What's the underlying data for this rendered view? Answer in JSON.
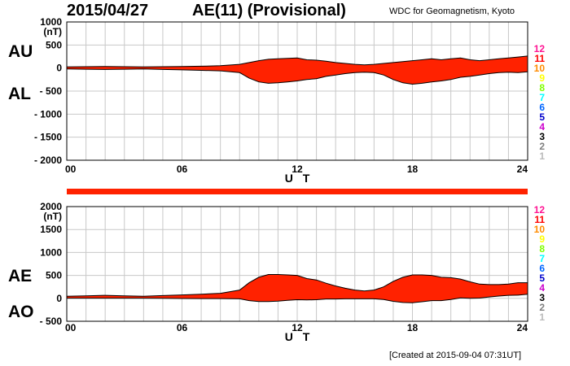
{
  "header": {
    "date": "2015/04/27",
    "title": "AE(11) (Provisional)",
    "source": "WDC for Geomagnetism, Kyoto"
  },
  "labels": {
    "au": "AU",
    "al": "AL",
    "ae": "AE",
    "ao": "AO"
  },
  "footer": {
    "created": "[Created at 2015-09-04 07:31UT]"
  },
  "station_scale": {
    "digits": [
      "12",
      "11",
      "10",
      "9",
      "8",
      "7",
      "6",
      "5",
      "4",
      "3",
      "2",
      "1"
    ],
    "colors": [
      "#ff1493",
      "#ff0000",
      "#ff8c00",
      "#ffff00",
      "#7fff00",
      "#00ffff",
      "#0066ff",
      "#0000cc",
      "#cc00cc",
      "#000000",
      "#808080",
      "#bbbbbb"
    ]
  },
  "colors": {
    "fill": "#ff2200",
    "outline": "#000000",
    "grid": "#c8c8c8"
  },
  "chart_data": [
    {
      "type": "area",
      "name": "AU/AL",
      "xlabel": "U T",
      "ylabel": "(nT)",
      "xlim": [
        0,
        24
      ],
      "ylim": [
        -2000,
        1000
      ],
      "xticks": [
        "00",
        "06",
        "12",
        "18",
        "24"
      ],
      "yticks": [
        "1000",
        "500",
        "0",
        "- 500",
        "- 1000",
        "- 1500",
        "- 2000"
      ],
      "grid": true,
      "x": [
        0,
        1,
        2,
        3,
        4,
        5,
        6,
        7,
        8,
        9,
        9.5,
        10,
        10.5,
        11,
        11.5,
        12,
        12.5,
        13,
        13.5,
        14,
        14.5,
        15,
        15.5,
        16,
        16.5,
        17,
        17.5,
        18,
        18.5,
        19,
        19.5,
        20,
        20.5,
        21,
        21.5,
        22,
        22.5,
        23,
        23.5,
        24
      ],
      "series": [
        {
          "name": "AU",
          "values": [
            25,
            30,
            35,
            30,
            25,
            30,
            35,
            40,
            50,
            80,
            120,
            160,
            190,
            200,
            210,
            220,
            180,
            170,
            150,
            120,
            100,
            80,
            70,
            80,
            100,
            120,
            140,
            160,
            180,
            200,
            180,
            200,
            220,
            180,
            160,
            180,
            200,
            220,
            240,
            260
          ]
        },
        {
          "name": "AL",
          "values": [
            -20,
            -25,
            -30,
            -25,
            -20,
            -30,
            -40,
            -50,
            -60,
            -100,
            -220,
            -300,
            -330,
            -320,
            -300,
            -280,
            -250,
            -230,
            -180,
            -150,
            -120,
            -100,
            -90,
            -100,
            -150,
            -250,
            -320,
            -350,
            -330,
            -300,
            -280,
            -250,
            -200,
            -180,
            -150,
            -120,
            -100,
            -90,
            -100,
            -80
          ]
        }
      ]
    },
    {
      "type": "area",
      "name": "AE/AO",
      "xlabel": "U T",
      "ylabel": "(nT)",
      "xlim": [
        0,
        24
      ],
      "ylim": [
        -500,
        2000
      ],
      "xticks": [
        "00",
        "06",
        "12",
        "18",
        "24"
      ],
      "yticks": [
        "2000",
        "1500",
        "1000",
        "500",
        "0",
        "- 500"
      ],
      "grid": true,
      "x": [
        0,
        1,
        2,
        3,
        4,
        5,
        6,
        7,
        8,
        9,
        9.5,
        10,
        10.5,
        11,
        11.5,
        12,
        12.5,
        13,
        13.5,
        14,
        14.5,
        15,
        15.5,
        16,
        16.5,
        17,
        17.5,
        18,
        18.5,
        19,
        19.5,
        20,
        20.5,
        21,
        21.5,
        22,
        22.5,
        23,
        23.5,
        24
      ],
      "series": [
        {
          "name": "AE",
          "values": [
            45,
            55,
            65,
            55,
            45,
            60,
            75,
            90,
            110,
            180,
            340,
            460,
            520,
            520,
            510,
            500,
            430,
            400,
            330,
            270,
            220,
            180,
            160,
            180,
            250,
            370,
            460,
            510,
            510,
            500,
            460,
            450,
            420,
            360,
            310,
            300,
            300,
            310,
            340,
            340
          ]
        },
        {
          "name": "AO",
          "values": [
            3,
            3,
            3,
            3,
            3,
            0,
            -3,
            -5,
            -5,
            -10,
            -50,
            -70,
            -70,
            -60,
            -45,
            -30,
            -35,
            -30,
            -15,
            -15,
            -10,
            -10,
            -10,
            -10,
            -25,
            -65,
            -90,
            -95,
            -75,
            -50,
            -50,
            -25,
            10,
            0,
            5,
            30,
            50,
            65,
            70,
            90
          ]
        }
      ]
    }
  ]
}
